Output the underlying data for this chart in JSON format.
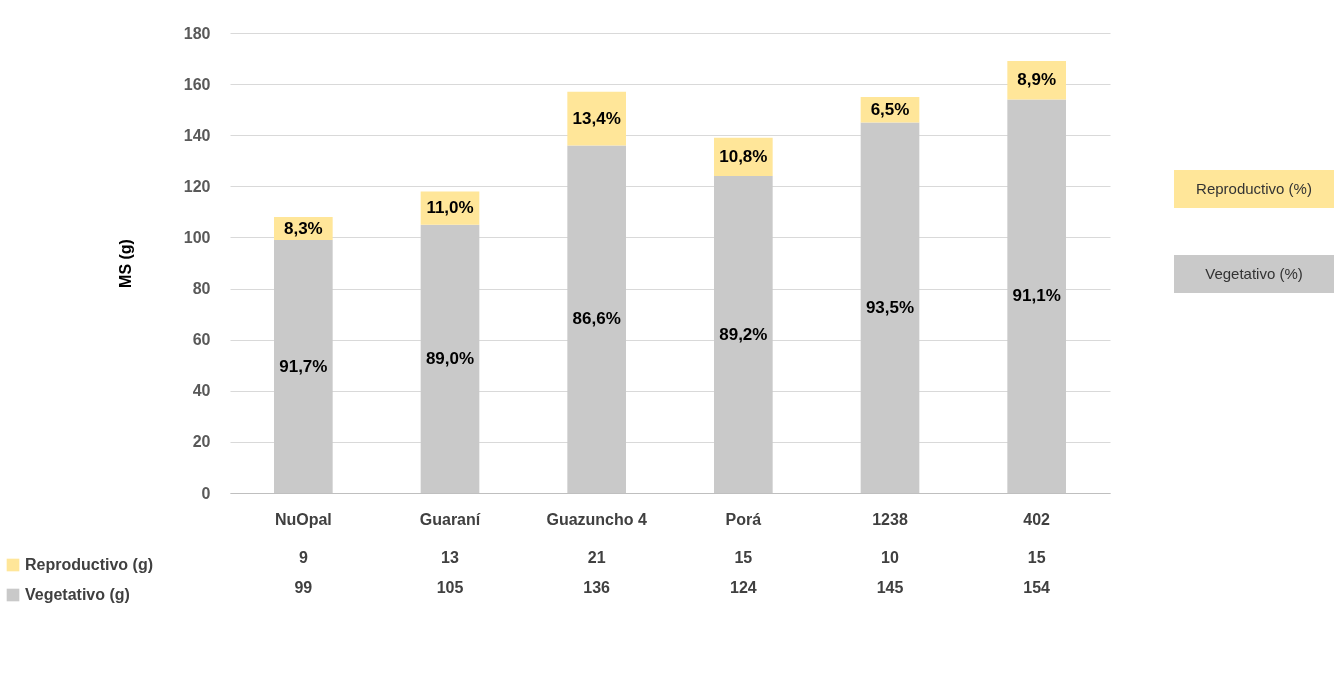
{
  "chart_data": {
    "type": "bar",
    "stacked": true,
    "categories": [
      "NuOpal",
      "Guaraní",
      "Guazuncho 4",
      "Porá",
      "1238",
      "402"
    ],
    "ylabel": "MS (g)",
    "ylim": [
      0,
      180
    ],
    "yticks": [
      0,
      20,
      40,
      60,
      80,
      100,
      120,
      140,
      160,
      180
    ],
    "grid": true,
    "legend": "bottom left",
    "data_labels": true,
    "series": [
      {
        "name": "Vegetativo (g)",
        "color": "#c9c9c9",
        "values": [
          99,
          105,
          136,
          124,
          145,
          154
        ]
      },
      {
        "name": "Reproductivo (g)",
        "color": "#ffe699",
        "values": [
          9,
          13,
          21,
          15,
          10,
          15
        ]
      }
    ],
    "annotations": [
      "Reproductivo (%)",
      "Vegetativo (%)",
      "91,7%",
      "89,0%",
      "86,6%",
      "89,2%",
      "93,5%",
      "91,1%",
      "8,3%",
      "11,0%",
      "13,4%",
      "10,8%",
      "6,5%",
      "8,9%"
    ]
  }
}
